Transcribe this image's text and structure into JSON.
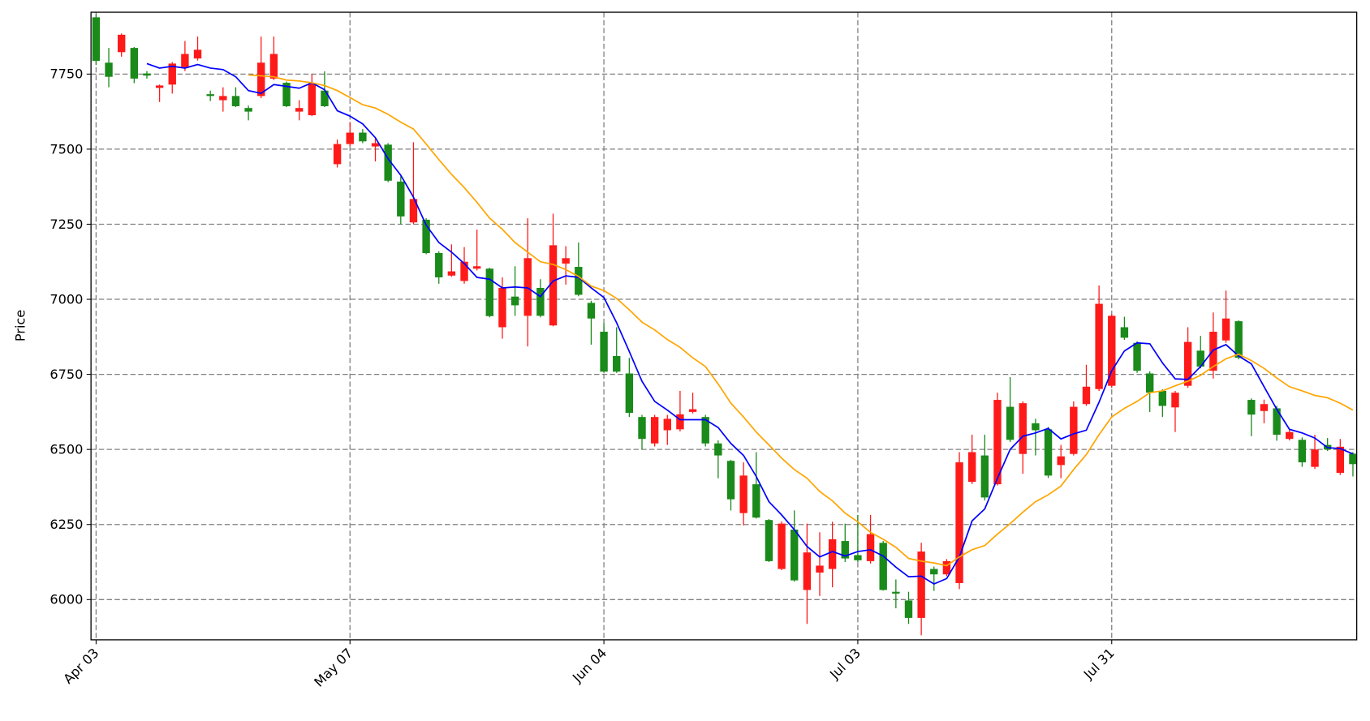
{
  "chart_data": {
    "type": "candlestick",
    "ylabel": "Price",
    "categories": [
      "Apr 03",
      null,
      null,
      null,
      null,
      null,
      null,
      null,
      null,
      null,
      null,
      null,
      null,
      null,
      null,
      null,
      null,
      null,
      null,
      null,
      "May 07",
      null,
      null,
      null,
      null,
      null,
      null,
      null,
      null,
      null,
      null,
      null,
      null,
      null,
      null,
      null,
      null,
      null,
      null,
      null,
      "Jun 04",
      null,
      null,
      null,
      null,
      null,
      null,
      null,
      null,
      null,
      null,
      null,
      null,
      null,
      null,
      null,
      null,
      null,
      null,
      null,
      "Jul 03",
      null,
      null,
      null,
      null,
      null,
      null,
      null,
      null,
      null,
      null,
      null,
      null,
      null,
      null,
      null,
      null,
      null,
      null,
      null,
      "Jul 31",
      null,
      null,
      null,
      null,
      null,
      null,
      null,
      null,
      null,
      null,
      null,
      null,
      null,
      null,
      null,
      null,
      null,
      null,
      null
    ],
    "open": [
      7794,
      7741,
      7881,
      7735,
      7745,
      7712,
      7785,
      7817,
      7831,
      7677,
      7677,
      7643,
      7625,
      7788,
      7817,
      7643,
      7637,
      7718,
      7643,
      7517,
      7555,
      7526,
      7520,
      7395,
      7276,
      7334,
      7154,
      7073,
      7093,
      7125,
      7110,
      6944,
      7038,
      6980,
      7137,
      6945,
      7180,
      7137,
      7015,
      6936,
      6759,
      6759,
      6622,
      6535,
      6608,
      6602,
      6617,
      6634,
      6520,
      6480,
      6334,
      6413,
      6273,
      6128,
      6253,
      6064,
      6157,
      6113,
      6201,
      6137,
      6131,
      6218,
      6032,
      6020,
      5939,
      6160,
      6084,
      6128,
      6457,
      6491,
      6340,
      6665,
      6532,
      6654,
      6564,
      6413,
      6477,
      6642,
      6709,
      6985,
      6945,
      6872,
      6762,
      6689,
      6645,
      6689,
      6858,
      6776,
      6892,
      6936,
      6805,
      6616,
      6651,
      6549,
      6558,
      6457,
      6500,
      6500,
      6509,
      6451
    ],
    "high": [
      7950,
      7837,
      7885,
      7840,
      7760,
      7715,
      7790,
      7860,
      7875,
      7695,
      7706,
      7706,
      7645,
      7875,
      7875,
      7725,
      7663,
      7750,
      7759,
      7532,
      7590,
      7567,
      7540,
      7520,
      7410,
      7523,
      7270,
      7160,
      7183,
      7174,
      7232,
      7105,
      7073,
      7110,
      7270,
      7067,
      7285,
      7177,
      7189,
      6995,
      6921,
      6907,
      6805,
      6615,
      6615,
      6615,
      6695,
      6689,
      6615,
      6530,
      6465,
      6457,
      6491,
      6268,
      6260,
      6297,
      6253,
      6224,
      6259,
      6253,
      6282,
      6282,
      6195,
      6067,
      6026,
      6189,
      6110,
      6135,
      6491,
      6549,
      6549,
      6689,
      6741,
      6660,
      6602,
      6575,
      6515,
      6660,
      6782,
      7046,
      6950,
      6942,
      6860,
      6760,
      6700,
      6695,
      6907,
      6878,
      6956,
      7029,
      6930,
      6670,
      6666,
      6645,
      6565,
      6540,
      6549,
      6538,
      6535,
      6491
    ],
    "low": [
      7780,
      7706,
      7808,
      7720,
      7735,
      7657,
      7685,
      7760,
      7795,
      7660,
      7625,
      7640,
      7596,
      7670,
      7730,
      7640,
      7596,
      7610,
      7640,
      7439,
      7510,
      7520,
      7459,
      7390,
      7250,
      7250,
      7150,
      7052,
      7075,
      7052,
      7096,
      6940,
      6869,
      6945,
      6843,
      6940,
      6910,
      7049,
      7010,
      6849,
      6755,
      6755,
      6608,
      6500,
      6510,
      6515,
      6560,
      6620,
      6510,
      6404,
      6297,
      6247,
      6270,
      6125,
      6098,
      6060,
      5919,
      6012,
      6041,
      6125,
      6125,
      6120,
      6030,
      5971,
      5919,
      5881,
      6029,
      6078,
      6035,
      6385,
      6330,
      6380,
      6525,
      6419,
      6480,
      6405,
      6404,
      6480,
      6645,
      6695,
      6705,
      6865,
      6755,
      6625,
      6608,
      6558,
      6705,
      6770,
      6736,
      6855,
      6800,
      6544,
      6587,
      6529,
      6530,
      6442,
      6435,
      6495,
      6415,
      6410
    ],
    "close": [
      7939,
      7788,
      7823,
      7837,
      7752,
      7704,
      7715,
      7773,
      7802,
      7683,
      7663,
      7677,
      7637,
      7677,
      7735,
      7721,
      7625,
      7613,
      7695,
      7450,
      7517,
      7555,
      7509,
      7515,
      7392,
      7256,
      7265,
      7154,
      7079,
      7061,
      7102,
      7102,
      6907,
      7009,
      6945,
      7038,
      6913,
      7119,
      7108,
      6988,
      6892,
      6811,
      6753,
      6608,
      6520,
      6564,
      6567,
      6625,
      6608,
      6520,
      6462,
      6288,
      6384,
      6265,
      6102,
      6233,
      6032,
      6090,
      6102,
      6195,
      6148,
      6128,
      6189,
      6026,
      5997,
      5939,
      6102,
      6084,
      6055,
      6392,
      6480,
      6384,
      6642,
      6485,
      6587,
      6567,
      6448,
      6485,
      6651,
      6701,
      6712,
      6907,
      6855,
      6753,
      6695,
      6640,
      6712,
      6829,
      6762,
      6863,
      6927,
      6665,
      6628,
      6637,
      6535,
      6532,
      6442,
      6515,
      6422,
      6486
    ],
    "up_color": "#1a8a1a",
    "down_color": "#ff1a1a",
    "lines": [
      {
        "color": "#0000ff",
        "values": [
          null,
          null,
          null,
          null,
          7785,
          7770,
          7776,
          7770,
          7782,
          7770,
          7765,
          7741,
          7695,
          7686,
          7715,
          7709,
          7703,
          7721,
          7698,
          7628,
          7610,
          7584,
          7538,
          7468,
          7413,
          7340,
          7247,
          7189,
          7157,
          7119,
          7073,
          7067,
          7038,
          7041,
          7038,
          7009,
          7061,
          7078,
          7073,
          7038,
          7006,
          6922,
          6826,
          6727,
          6660,
          6631,
          6599,
          6599,
          6599,
          6573,
          6520,
          6480,
          6410,
          6326,
          6282,
          6233,
          6177,
          6142,
          6160,
          6145,
          6160,
          6166,
          6145,
          6108,
          6076,
          6078,
          6052,
          6070,
          6142,
          6262,
          6302,
          6404,
          6500,
          6544,
          6555,
          6570,
          6535,
          6552,
          6564,
          6657,
          6762,
          6828,
          6855,
          6852,
          6788,
          6735,
          6733,
          6776,
          6831,
          6849,
          6811,
          6785,
          6709,
          6634,
          6567,
          6555,
          6538,
          6506,
          6503,
          6485
        ]
      },
      {
        "color": "#ffa500",
        "values": [
          null,
          null,
          null,
          null,
          null,
          null,
          null,
          null,
          null,
          null,
          null,
          null,
          7747,
          7744,
          7741,
          7730,
          7727,
          7721,
          7712,
          7695,
          7672,
          7648,
          7637,
          7616,
          7590,
          7567,
          7517,
          7465,
          7416,
          7372,
          7323,
          7270,
          7233,
          7189,
          7157,
          7125,
          7116,
          7099,
          7076,
          7044,
          7029,
          7003,
          6965,
          6924,
          6898,
          6866,
          6840,
          6805,
          6776,
          6718,
          6654,
          6608,
          6558,
          6515,
          6471,
          6433,
          6404,
          6360,
          6329,
          6288,
          6259,
          6224,
          6201,
          6174,
          6137,
          6128,
          6122,
          6113,
          6142,
          6166,
          6180,
          6218,
          6253,
          6291,
          6326,
          6349,
          6378,
          6433,
          6483,
          6549,
          6608,
          6637,
          6660,
          6689,
          6695,
          6712,
          6727,
          6747,
          6776,
          6802,
          6817,
          6796,
          6770,
          6738,
          6709,
          6695,
          6680,
          6672,
          6654,
          6631
        ]
      }
    ],
    "xlim": [
      -0.4,
      99.3
    ],
    "ylim": [
      5866,
      7956
    ],
    "yticks": [
      6000,
      6250,
      6500,
      6750,
      7000,
      7250,
      7500,
      7750
    ],
    "grid": true
  }
}
